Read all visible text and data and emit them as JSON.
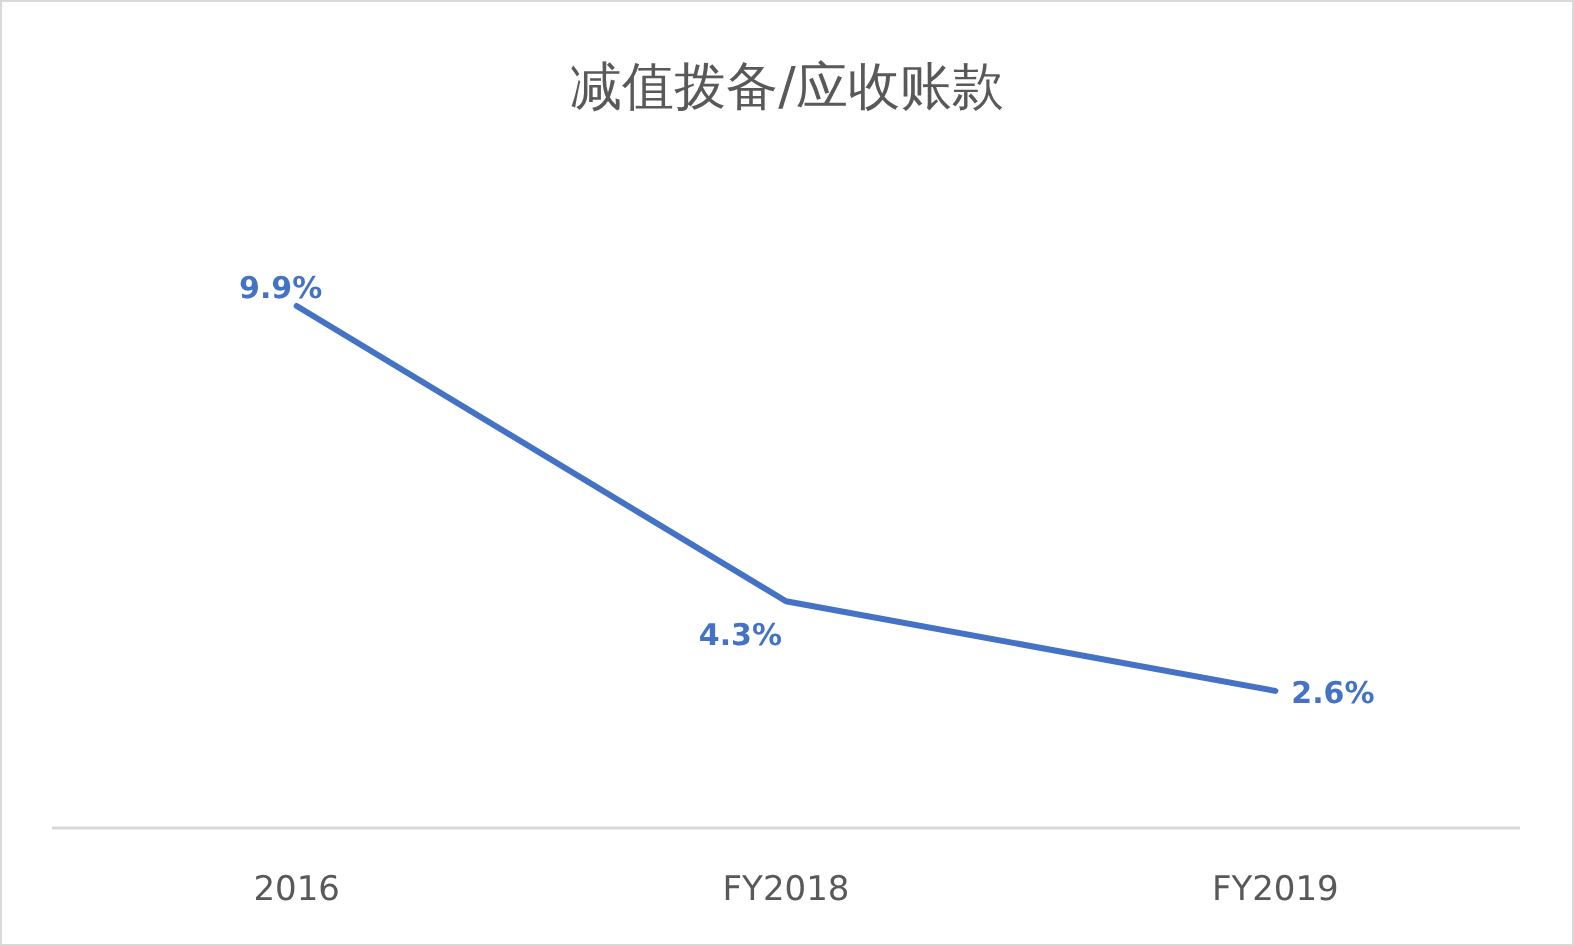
{
  "chart_data": {
    "type": "line",
    "title": "减值拨备/应收账款",
    "categories": [
      "2016",
      "FY2018",
      "FY2019"
    ],
    "series": [
      {
        "color": "#4472c4",
        "values": [
          9.9,
          4.3,
          2.6
        ],
        "value_labels": [
          "9.9%",
          "4.3%",
          "2.6%"
        ]
      }
    ],
    "marker": "none",
    "line_style": "solid"
  }
}
